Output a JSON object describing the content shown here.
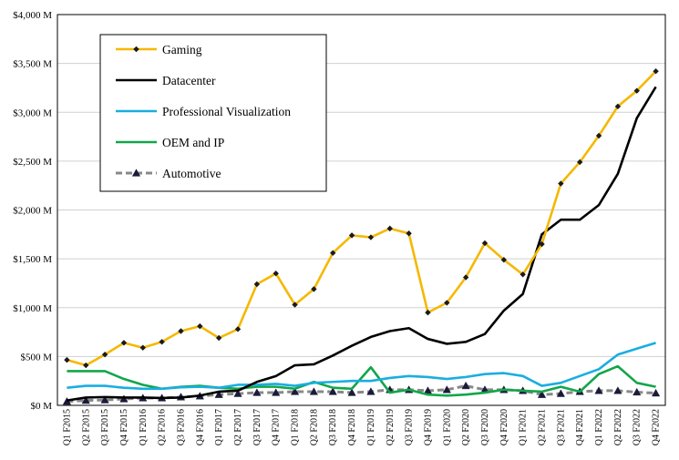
{
  "chart_data": {
    "type": "line",
    "title": "",
    "xlabel": "",
    "ylabel": "",
    "ylim": [
      0,
      4000
    ],
    "yticks": [
      0,
      500,
      1000,
      1500,
      2000,
      2500,
      3000,
      3500,
      4000
    ],
    "ytick_labels": [
      "$0 M",
      "$500 M",
      "$1,000 M",
      "$1,500 M",
      "$2,000 M",
      "$2,500 M",
      "$3,000 M",
      "$3,500 M",
      "$4,000 M"
    ],
    "grid": "horizontal",
    "legend_placement": "top-left",
    "categories": [
      "Q1 F2015",
      "Q2 F2015",
      "Q3 F2015",
      "Q4 F2015",
      "Q1 F2016",
      "Q2 F2016",
      "Q3 F2016",
      "Q4 F2016",
      "Q1 F2017",
      "Q2 F2017",
      "Q3 F2017",
      "Q4 F2017",
      "Q1 F2018",
      "Q2 F2018",
      "Q3 F2018",
      "Q4 F2018",
      "Q1 F2019",
      "Q2 F2019",
      "Q3 F2019",
      "Q4 F2019",
      "Q1 F2020",
      "Q2 F2020",
      "Q3 F2020",
      "Q4 F2020",
      "Q1 F2021",
      "Q2 F2021",
      "Q3 F2021",
      "Q4 F2021",
      "Q1 F2022",
      "Q2 F2022",
      "Q3 F2022",
      "Q4 F2022"
    ],
    "series": [
      {
        "name": "Gaming",
        "color": "#F5B800",
        "marker": "diamond",
        "values": [
          465,
          410,
          520,
          640,
          590,
          650,
          760,
          810,
          690,
          780,
          1240,
          1350,
          1030,
          1190,
          1560,
          1740,
          1720,
          1810,
          1760,
          950,
          1050,
          1310,
          1660,
          1490,
          1340,
          1650,
          2270,
          2490,
          2760,
          3060,
          3220,
          3420
        ]
      },
      {
        "name": "Datacenter",
        "color": "#000000",
        "marker": "none",
        "values": [
          50,
          80,
          85,
          80,
          80,
          75,
          80,
          100,
          140,
          150,
          240,
          300,
          410,
          420,
          510,
          610,
          700,
          760,
          790,
          680,
          630,
          650,
          730,
          970,
          1140,
          1750,
          1900,
          1900,
          2050,
          2370,
          2940,
          3260
        ]
      },
      {
        "name": "Professional Visualization",
        "color": "#1AAEE0",
        "marker": "none",
        "values": [
          180,
          200,
          200,
          180,
          170,
          170,
          185,
          190,
          180,
          210,
          210,
          220,
          200,
          230,
          240,
          250,
          250,
          280,
          300,
          290,
          270,
          290,
          320,
          330,
          300,
          200,
          230,
          300,
          370,
          520,
          580,
          640
        ]
      },
      {
        "name": "OEM and IP",
        "color": "#12A64A",
        "marker": "none",
        "values": [
          350,
          350,
          350,
          270,
          210,
          170,
          190,
          200,
          180,
          170,
          190,
          190,
          170,
          240,
          180,
          170,
          390,
          130,
          160,
          110,
          100,
          110,
          130,
          160,
          150,
          140,
          190,
          140,
          320,
          400,
          230,
          190
        ]
      },
      {
        "name": "Automotive",
        "color": "#888888",
        "marker": "triangle",
        "dashed": true,
        "values": [
          40,
          50,
          55,
          65,
          75,
          75,
          85,
          95,
          110,
          120,
          130,
          130,
          140,
          140,
          140,
          130,
          140,
          160,
          160,
          150,
          160,
          200,
          160,
          160,
          150,
          110,
          120,
          140,
          150,
          150,
          135,
          125
        ]
      }
    ]
  }
}
